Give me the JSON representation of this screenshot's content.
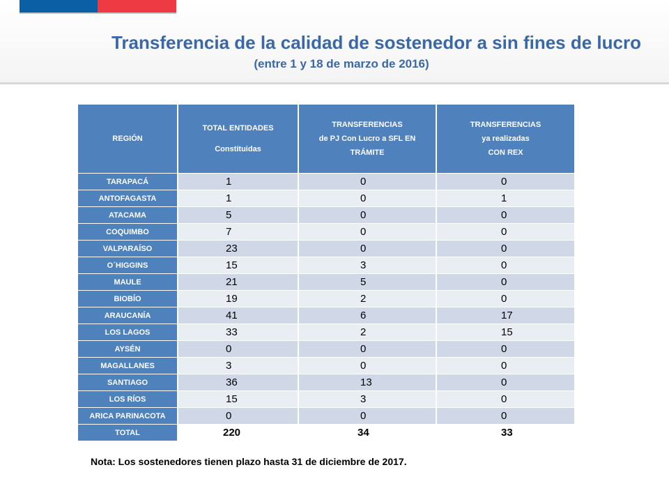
{
  "header": {
    "title": "Transferencia de la calidad de sostenedor a sin fines de lucro",
    "subtitle": "(entre 1 y 18 de marzo de 2016)"
  },
  "table": {
    "headers": {
      "region": "REGIÓN",
      "total_line1": "TOTAL ENTIDADES",
      "total_line2": "Constituidas",
      "tramite_line1": "TRANSFERENCIAS",
      "tramite_line2": "de PJ Con Lucro a SFL EN",
      "tramite_line3": "TRÁMITE",
      "rex_line1": "TRANSFERENCIAS",
      "rex_line2": "ya realizadas",
      "rex_line3": "CON REX"
    },
    "rows": [
      {
        "region": "TARAPACÁ",
        "total": "1",
        "tramite": "0",
        "rex": "0"
      },
      {
        "region": "ANTOFAGASTA",
        "total": "1",
        "tramite": "0",
        "rex": "1"
      },
      {
        "region": "ATACAMA",
        "total": "5",
        "tramite": "0",
        "rex": "0"
      },
      {
        "region": "COQUIMBO",
        "total": "7",
        "tramite": "0",
        "rex": "0"
      },
      {
        "region": "VALPARAÍSO",
        "total": "23",
        "tramite": "0",
        "rex": "0"
      },
      {
        "region": "O´HIGGINS",
        "total": "15",
        "tramite": "3",
        "rex": "0"
      },
      {
        "region": "MAULE",
        "total": "21",
        "tramite": "5",
        "rex": "0"
      },
      {
        "region": "BIOBÍO",
        "total": "19",
        "tramite": "2",
        "rex": "0"
      },
      {
        "region": "ARAUCANÍA",
        "total": "41",
        "tramite": "6",
        "rex": "17"
      },
      {
        "region": "LOS LAGOS",
        "total": "33",
        "tramite": "2",
        "rex": "15"
      },
      {
        "region": "AYSÉN",
        "total": "0",
        "tramite": "0",
        "rex": "0"
      },
      {
        "region": "MAGALLANES",
        "total": "3",
        "tramite": "0",
        "rex": "0"
      },
      {
        "region": "SANTIAGO",
        "total": "36",
        "tramite": "13",
        "rex": "0"
      },
      {
        "region": "LOS RÍOS",
        "total": "15",
        "tramite": "3",
        "rex": "0"
      },
      {
        "region": "ARICA PARINACOTA",
        "total": "0",
        "tramite": "0",
        "rex": "0"
      }
    ],
    "total_row": {
      "region": "TOTAL",
      "total": "220",
      "tramite": "34",
      "rex": "33"
    }
  },
  "note": "Nota: Los sostenedores tienen plazo hasta 31 de diciembre de 2017.",
  "colors": {
    "header_blue": "#4f81bd",
    "title_blue": "#3a68a6",
    "row_dark": "#d0d8e8",
    "row_light": "#e9edf4"
  }
}
